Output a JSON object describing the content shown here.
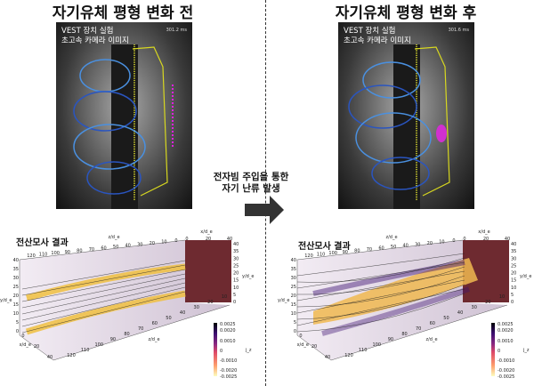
{
  "left": {
    "title": "자기유체 평형 변화 전",
    "photo_caption_line1": "VEST 장치 실험",
    "photo_caption_line2": "초고속 카메라 이미지",
    "time": "301.2 ms",
    "sim_title": "전산모사 결과"
  },
  "right": {
    "title": "자기유체 평형 변화 후",
    "photo_caption_line1": "VEST 장치 실험",
    "photo_caption_line2": "초고속 카메라 이미지",
    "time": "301.6 ms",
    "sim_title": "전산모사 결과"
  },
  "middle": {
    "line1": "전자빔 주입을 통한",
    "line2": "자기 난류 발생",
    "arrow_icon": "right-arrow-icon"
  },
  "axes": {
    "z_label": "z/d_e",
    "x_label": "x/d_e",
    "y_label": "y/d_e",
    "z_ticks": [
      "120",
      "110",
      "100",
      "90",
      "80",
      "70",
      "60",
      "50",
      "40",
      "30",
      "20",
      "10",
      "0"
    ],
    "x_ticks": [
      "0",
      "20",
      "40"
    ],
    "y_ticks": [
      "40",
      "35",
      "30",
      "25",
      "20",
      "15",
      "10",
      "5",
      "0"
    ],
    "bottom_z_ticks": [
      "120",
      "110",
      "100",
      "90",
      "80",
      "70",
      "60",
      "50",
      "40",
      "30",
      "20",
      "10"
    ]
  },
  "colorbar": {
    "label": "j_z",
    "ticks": [
      "0.0025",
      "0.0020",
      "0.0010",
      "0",
      "-0.0010",
      "-0.0020",
      "-0.0025"
    ],
    "colors": [
      "#000004",
      "#3b0f70",
      "#8c2981",
      "#de4968",
      "#fe9f6d",
      "#fcfdbf"
    ]
  }
}
